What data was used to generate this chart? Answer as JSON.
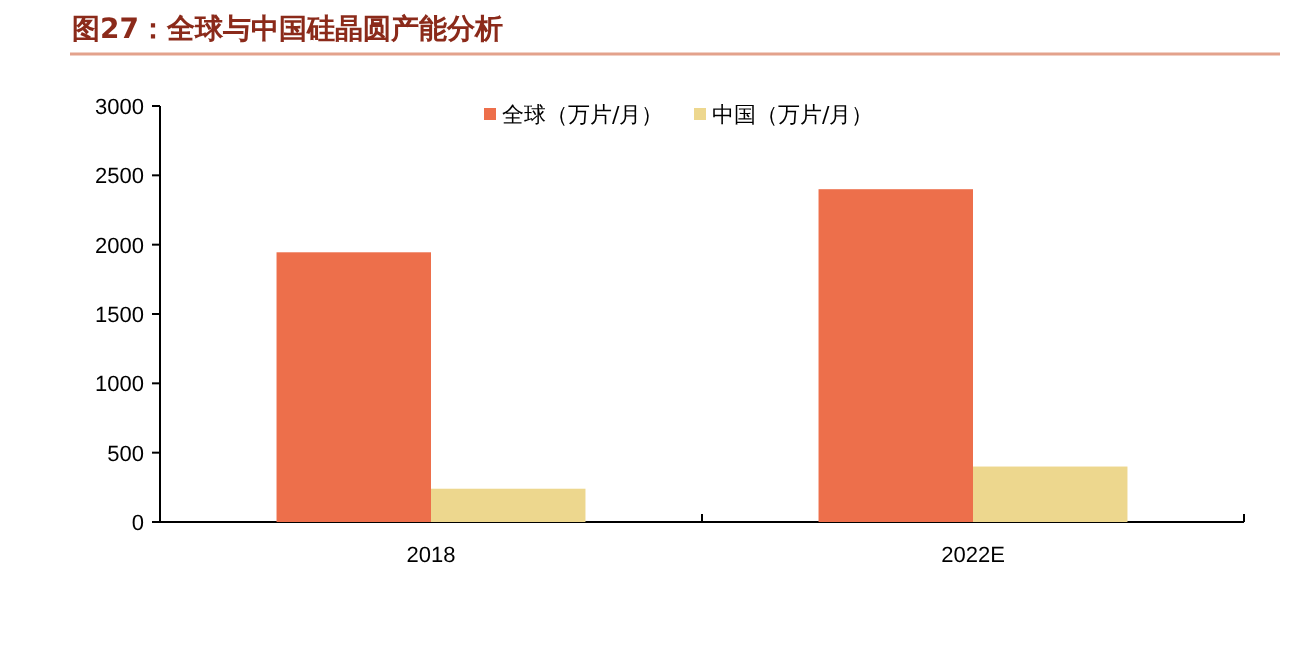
{
  "chart_data": {
    "type": "bar",
    "title": "图27：全球与中国硅晶圆产能分析",
    "categories": [
      "2018",
      "2022E"
    ],
    "series": [
      {
        "name": "全球（万片/月）",
        "color": "#ed6f4b",
        "values": [
          1945,
          2400
        ]
      },
      {
        "name": "中国（万片/月）",
        "color": "#edd78e",
        "values": [
          240,
          400
        ]
      }
    ],
    "ylim": [
      0,
      3000
    ],
    "yticks": [
      0,
      500,
      1000,
      1500,
      2000,
      2500,
      3000
    ],
    "grid": false,
    "legend": "top"
  }
}
